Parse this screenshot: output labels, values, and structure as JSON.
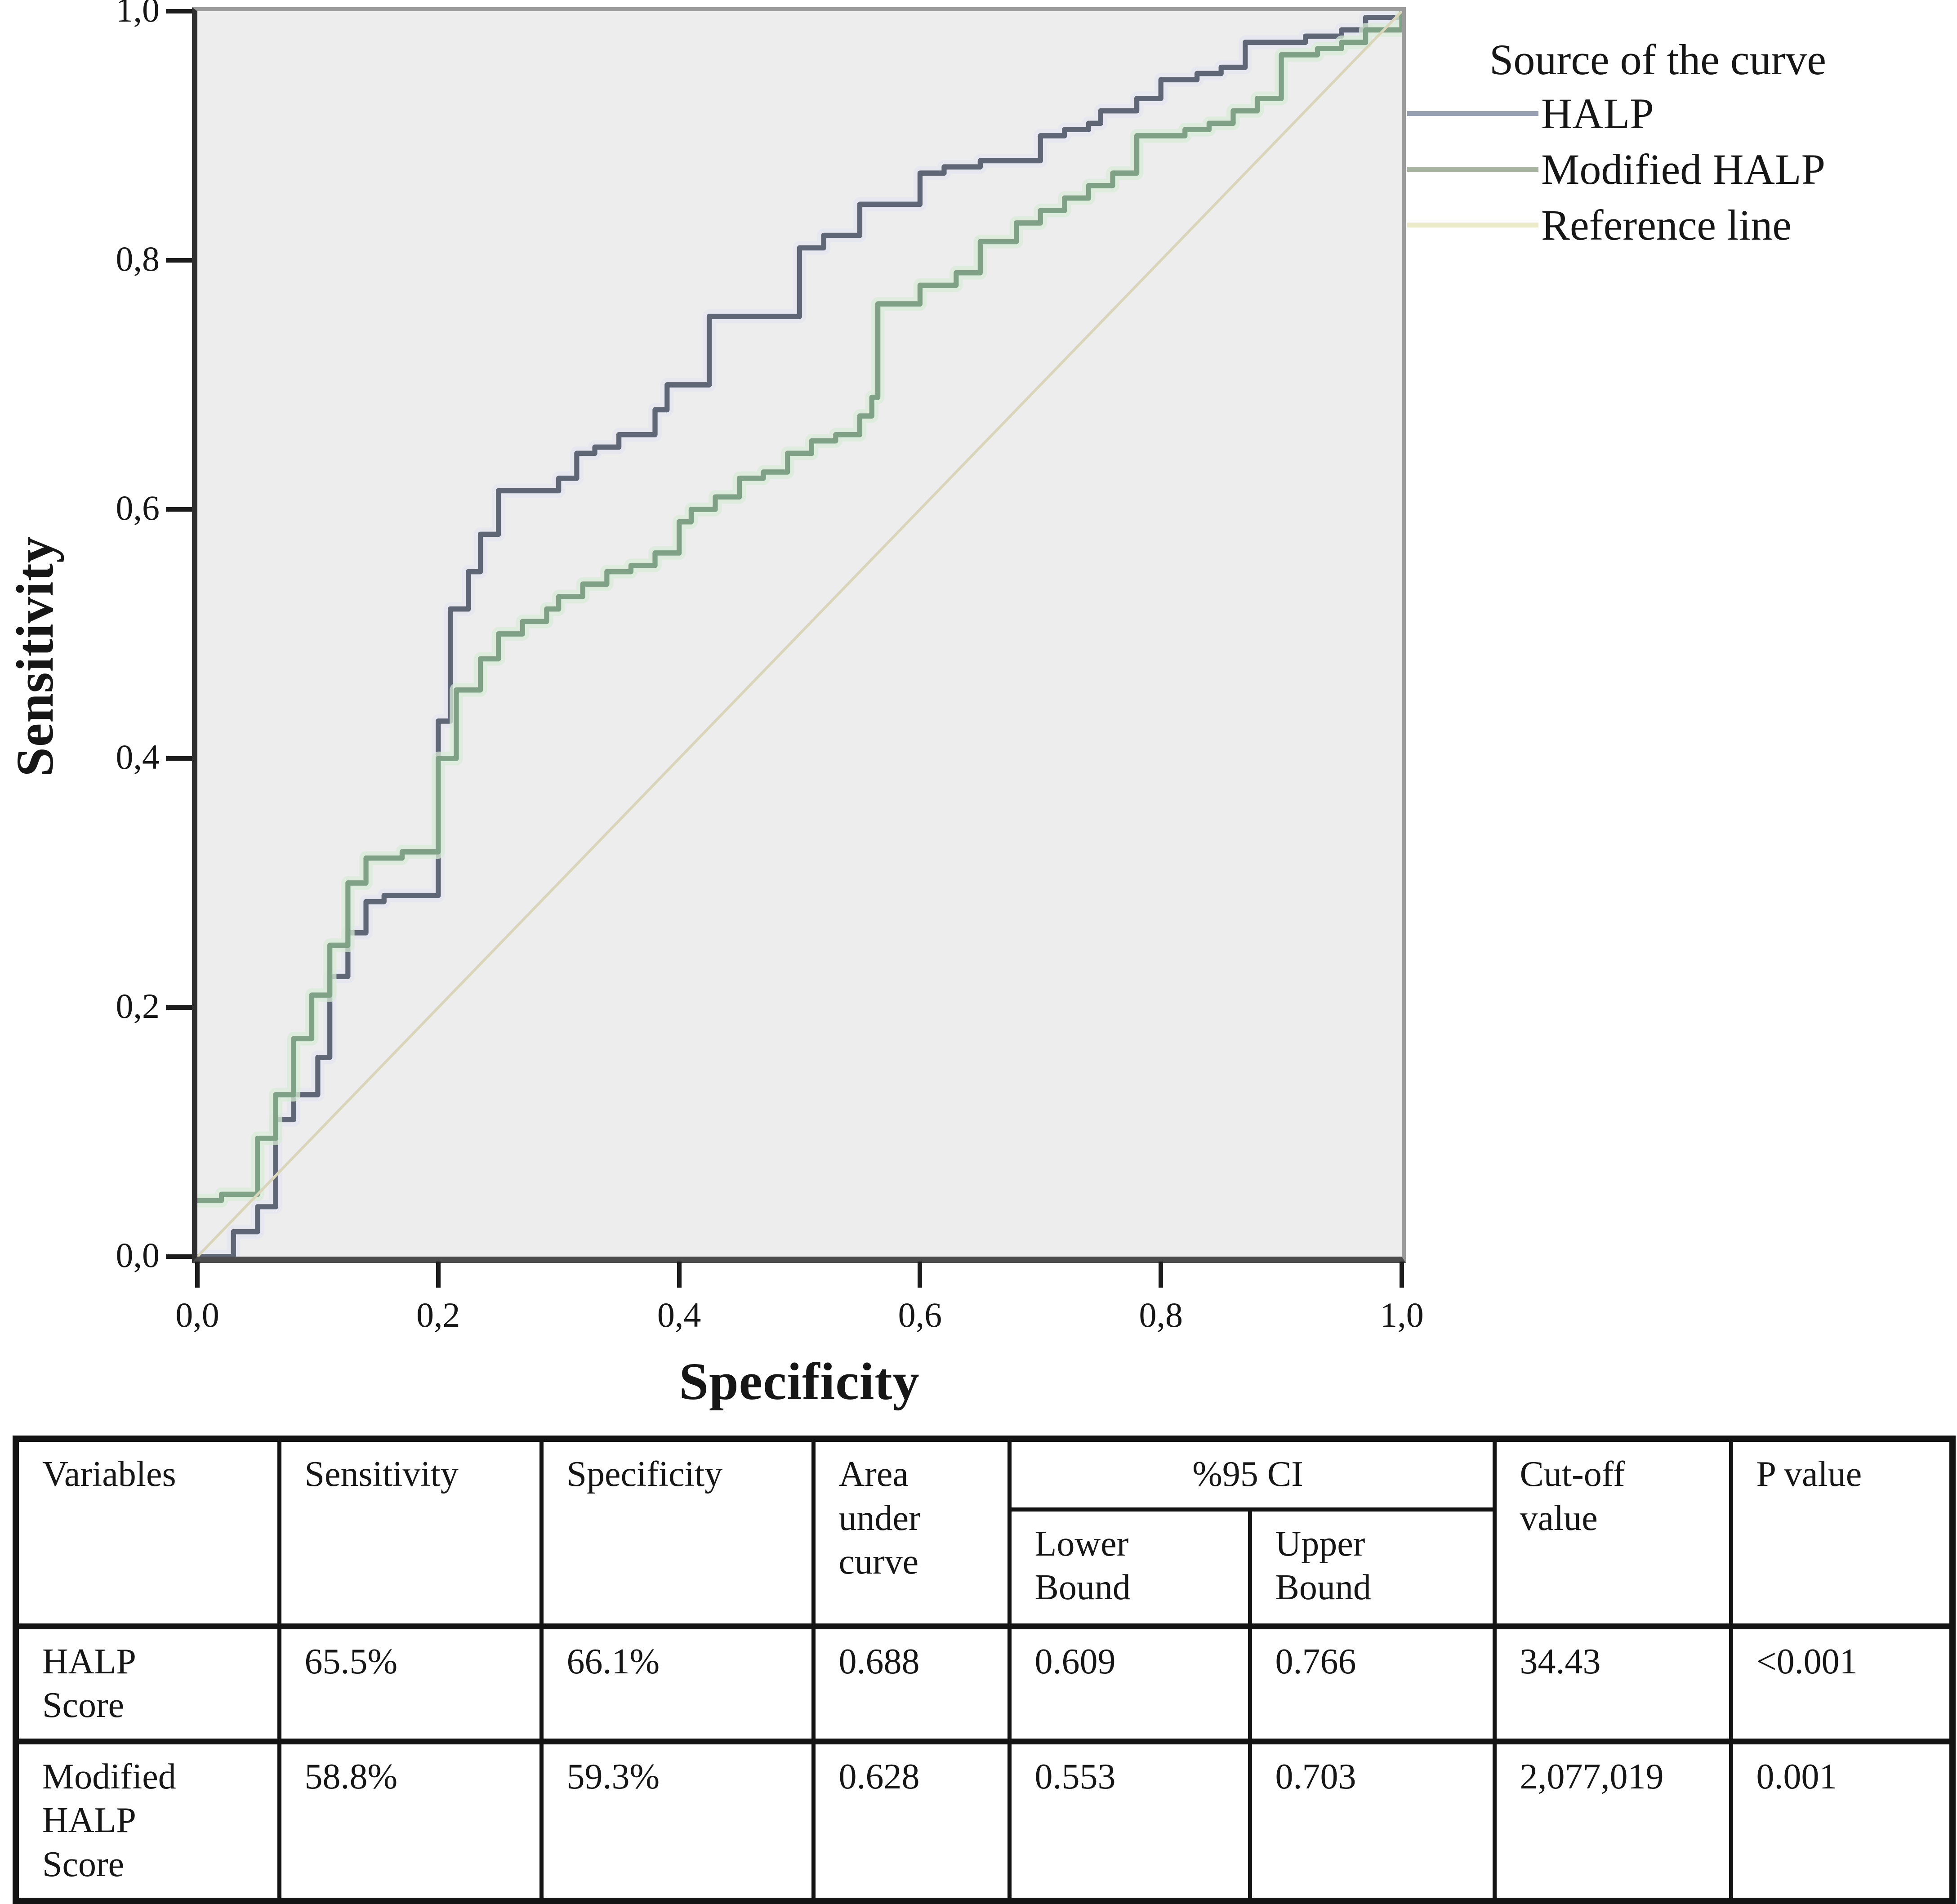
{
  "chart": {
    "x_ticks": [
      "0,0",
      "0,2",
      "0,4",
      "0,6",
      "0,8",
      "1,0"
    ],
    "y_ticks": [
      "0,0",
      "0,2",
      "0,4",
      "0,6",
      "0,8",
      "1,0"
    ]
  },
  "chart_data": {
    "type": "line",
    "subtype": "roc-step-curves",
    "title": "",
    "xlabel": "Specificity",
    "ylabel": "Sensitivity",
    "xlim": [
      0.0,
      1.0
    ],
    "ylim": [
      0.0,
      1.0
    ],
    "grid": false,
    "plot_background": "#ededee",
    "legend_position": "top-right-outside",
    "legend_title": "Source of the curve",
    "series": [
      {
        "name": "HALP",
        "color": "#5f6777",
        "legend_color": "#97a0b0",
        "halo": "#e3e4ef",
        "style": "step",
        "points": [
          [
            0,
            0
          ],
          [
            0.03,
            0.02
          ],
          [
            0.05,
            0.02
          ],
          [
            0.05,
            0.04
          ],
          [
            0.065,
            0.04
          ],
          [
            0.065,
            0.11
          ],
          [
            0.08,
            0.12
          ],
          [
            0.08,
            0.13
          ],
          [
            0.1,
            0.13
          ],
          [
            0.1,
            0.16
          ],
          [
            0.11,
            0.2
          ],
          [
            0.11,
            0.225
          ],
          [
            0.125,
            0.24
          ],
          [
            0.125,
            0.26
          ],
          [
            0.14,
            0.27
          ],
          [
            0.14,
            0.285
          ],
          [
            0.155,
            0.29
          ],
          [
            0.2,
            0.29
          ],
          [
            0.2,
            0.43
          ],
          [
            0.21,
            0.45
          ],
          [
            0.21,
            0.52
          ],
          [
            0.225,
            0.53
          ],
          [
            0.225,
            0.55
          ],
          [
            0.235,
            0.565
          ],
          [
            0.235,
            0.58
          ],
          [
            0.25,
            0.59
          ],
          [
            0.25,
            0.615
          ],
          [
            0.3,
            0.615
          ],
          [
            0.3,
            0.625
          ],
          [
            0.315,
            0.625
          ],
          [
            0.315,
            0.645
          ],
          [
            0.33,
            0.65
          ],
          [
            0.35,
            0.655
          ],
          [
            0.35,
            0.66
          ],
          [
            0.38,
            0.66
          ],
          [
            0.38,
            0.68
          ],
          [
            0.39,
            0.69
          ],
          [
            0.39,
            0.7
          ],
          [
            0.425,
            0.7
          ],
          [
            0.425,
            0.755
          ],
          [
            0.5,
            0.755
          ],
          [
            0.5,
            0.81
          ],
          [
            0.52,
            0.815
          ],
          [
            0.52,
            0.82
          ],
          [
            0.55,
            0.82
          ],
          [
            0.55,
            0.845
          ],
          [
            0.6,
            0.845
          ],
          [
            0.6,
            0.87
          ],
          [
            0.62,
            0.875
          ],
          [
            0.65,
            0.88
          ],
          [
            0.66,
            0.88
          ],
          [
            0.7,
            0.9
          ],
          [
            0.72,
            0.905
          ],
          [
            0.74,
            0.91
          ],
          [
            0.75,
            0.92
          ],
          [
            0.78,
            0.93
          ],
          [
            0.8,
            0.93
          ],
          [
            0.8,
            0.945
          ],
          [
            0.83,
            0.95
          ],
          [
            0.85,
            0.955
          ],
          [
            0.87,
            0.96
          ],
          [
            0.87,
            0.975
          ],
          [
            0.92,
            0.98
          ],
          [
            0.95,
            0.985
          ],
          [
            0.97,
            0.995
          ],
          [
            1,
            1
          ]
        ]
      },
      {
        "name": "Modified HALP",
        "color": "#7fa287",
        "legend_color": "#a6b4a0",
        "halo": "#d8ebd7",
        "style": "step",
        "points": [
          [
            0,
            0.045
          ],
          [
            0.02,
            0.05
          ],
          [
            0.05,
            0.05
          ],
          [
            0.05,
            0.095
          ],
          [
            0.065,
            0.1
          ],
          [
            0.065,
            0.13
          ],
          [
            0.08,
            0.135
          ],
          [
            0.08,
            0.175
          ],
          [
            0.095,
            0.18
          ],
          [
            0.095,
            0.21
          ],
          [
            0.11,
            0.215
          ],
          [
            0.11,
            0.25
          ],
          [
            0.125,
            0.255
          ],
          [
            0.125,
            0.3
          ],
          [
            0.14,
            0.305
          ],
          [
            0.14,
            0.32
          ],
          [
            0.17,
            0.325
          ],
          [
            0.2,
            0.33
          ],
          [
            0.2,
            0.4
          ],
          [
            0.215,
            0.405
          ],
          [
            0.215,
            0.455
          ],
          [
            0.235,
            0.46
          ],
          [
            0.235,
            0.48
          ],
          [
            0.25,
            0.485
          ],
          [
            0.25,
            0.5
          ],
          [
            0.27,
            0.51
          ],
          [
            0.29,
            0.52
          ],
          [
            0.3,
            0.53
          ],
          [
            0.32,
            0.54
          ],
          [
            0.34,
            0.55
          ],
          [
            0.36,
            0.555
          ],
          [
            0.38,
            0.565
          ],
          [
            0.4,
            0.59
          ],
          [
            0.41,
            0.6
          ],
          [
            0.43,
            0.61
          ],
          [
            0.45,
            0.625
          ],
          [
            0.47,
            0.63
          ],
          [
            0.49,
            0.645
          ],
          [
            0.51,
            0.655
          ],
          [
            0.53,
            0.66
          ],
          [
            0.55,
            0.675
          ],
          [
            0.56,
            0.69
          ],
          [
            0.565,
            0.72
          ],
          [
            0.565,
            0.765
          ],
          [
            0.6,
            0.77
          ],
          [
            0.6,
            0.78
          ],
          [
            0.63,
            0.79
          ],
          [
            0.65,
            0.8
          ],
          [
            0.65,
            0.815
          ],
          [
            0.68,
            0.83
          ],
          [
            0.7,
            0.84
          ],
          [
            0.72,
            0.85
          ],
          [
            0.74,
            0.86
          ],
          [
            0.76,
            0.87
          ],
          [
            0.78,
            0.875
          ],
          [
            0.78,
            0.9
          ],
          [
            0.82,
            0.905
          ],
          [
            0.84,
            0.91
          ],
          [
            0.86,
            0.92
          ],
          [
            0.88,
            0.93
          ],
          [
            0.9,
            0.935
          ],
          [
            0.9,
            0.965
          ],
          [
            0.93,
            0.97
          ],
          [
            0.95,
            0.975
          ],
          [
            0.97,
            0.985
          ],
          [
            1,
            1
          ]
        ]
      },
      {
        "name": "Reference line",
        "color": "#d8d5b8",
        "legend_color": "#ebebca",
        "halo": null,
        "style": "line",
        "points": [
          [
            0,
            0
          ],
          [
            1,
            1
          ]
        ]
      }
    ]
  },
  "table": {
    "headers": {
      "variables": "Variables",
      "sensitivity": "Sensitivity",
      "specificity": "Specificity",
      "auc": "Area\nunder\ncurve",
      "ci": "%95 CI",
      "ci_lower": "Lower\nBound",
      "ci_upper": "Upper\nBound",
      "cutoff": "Cut-off\nvalue",
      "p": "P value"
    },
    "rows": [
      {
        "variable": "HALP\nScore",
        "sensitivity": "65.5%",
        "specificity": "66.1%",
        "auc": "0.688",
        "lower": "0.609",
        "upper": "0.766",
        "cutoff": "34.43",
        "p": "<0.001"
      },
      {
        "variable": "Modified\nHALP\nScore",
        "sensitivity": "58.8%",
        "specificity": "59.3%",
        "auc": "0.628",
        "lower": "0.553",
        "upper": "0.703",
        "cutoff": "2,077,019",
        "p": "0.001"
      }
    ]
  }
}
